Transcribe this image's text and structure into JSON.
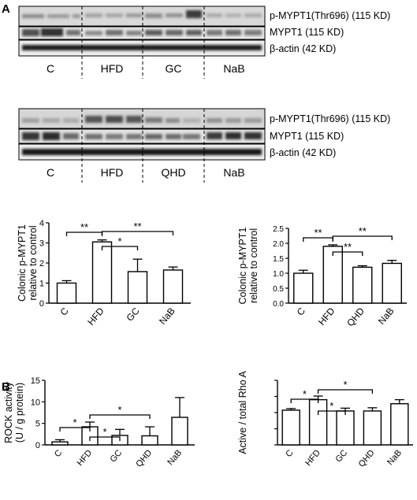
{
  "panel_labels": {
    "a": "A",
    "b": "B"
  },
  "blot1": {
    "bands": [
      "p-MYPT1(Thr696) (115 KD)",
      "MYPT1 (115 KD)",
      "β-actin (42 KD)"
    ],
    "groups": [
      "C",
      "HFD",
      "GC",
      "NaB"
    ]
  },
  "blot2": {
    "bands": [
      "p-MYPT1(Thr696) (115 KD)",
      "MYPT1 (115 KD)",
      "β-actin (42 KD)"
    ],
    "groups": [
      "C",
      "HFD",
      "QHD",
      "NaB"
    ]
  },
  "chart_data": [
    {
      "type": "bar",
      "categories": [
        "C",
        "HFD",
        "GC",
        "NaB"
      ],
      "values": [
        1.0,
        3.05,
        1.57,
        1.65
      ],
      "errors": [
        0.12,
        0.1,
        0.62,
        0.15
      ],
      "ylabel": "Colonic p-MYPT1 relative to control",
      "ylabel_lines": [
        "Colonic p-MYPT1",
        "relative to control"
      ],
      "ylim": [
        0,
        4
      ],
      "yticks": [
        0,
        1,
        2,
        3,
        4
      ],
      "ytick_labels": [
        "0",
        "1",
        "2",
        "3",
        "4"
      ],
      "significance": [
        {
          "from": 0,
          "to": 1,
          "label": "**"
        },
        {
          "from": 1,
          "to": 2,
          "label": "*"
        },
        {
          "from": 1,
          "to": 3,
          "label": "**"
        }
      ]
    },
    {
      "type": "bar",
      "categories": [
        "C",
        "HFD",
        "QHD",
        "NaB"
      ],
      "values": [
        1.0,
        1.9,
        1.2,
        1.33
      ],
      "errors": [
        0.1,
        0.05,
        0.05,
        0.1
      ],
      "ylabel": "Colonic p-MYPT1 relative to control",
      "ylabel_lines": [
        "Colonic p-MYPT1",
        "relative to control"
      ],
      "ylim": [
        0,
        2.5
      ],
      "yticks": [
        0,
        0.5,
        1,
        1.5,
        2,
        2.5
      ],
      "ytick_labels": [
        "0.0",
        "0.5",
        "1.0",
        "1.5",
        "2.0",
        "2.5"
      ],
      "significance": [
        {
          "from": 0,
          "to": 1,
          "label": "**"
        },
        {
          "from": 1,
          "to": 2,
          "label": "**"
        },
        {
          "from": 1,
          "to": 3,
          "label": "**"
        }
      ]
    },
    {
      "type": "bar",
      "categories": [
        "C",
        "HFD",
        "GC",
        "QHD",
        "NaB"
      ],
      "values": [
        0.7,
        4.2,
        2.2,
        2.1,
        6.4
      ],
      "errors": [
        0.5,
        1.1,
        1.4,
        2.1,
        4.6
      ],
      "ylabel": "ROCK activity (U / g protein)",
      "ylabel_lines": [
        "ROCK activity",
        "(U / g protein)"
      ],
      "ylim": [
        0,
        15
      ],
      "yticks": [
        0,
        5,
        10,
        15
      ],
      "ytick_labels": [
        "0",
        "5",
        "10",
        "15"
      ],
      "significance": [
        {
          "from": 0,
          "to": 1,
          "label": "*"
        },
        {
          "from": 1,
          "to": 2,
          "label": "*"
        },
        {
          "from": 1,
          "to": 3,
          "label": "*"
        }
      ]
    },
    {
      "type": "bar",
      "categories": [
        "C",
        "HFD",
        "GC",
        "QHD",
        "NaB"
      ],
      "values": [
        0.43,
        0.56,
        0.42,
        0.42,
        0.51
      ],
      "errors": [
        0.02,
        0.045,
        0.035,
        0.04,
        0.05
      ],
      "ylabel": "Active / total Rho A",
      "ylabel_lines": [
        "Active / total Rho A"
      ],
      "ylim": [
        0,
        0.8
      ],
      "yticks": [
        0,
        0.2,
        0.4,
        0.6,
        0.8
      ],
      "ytick_labels": [
        "",
        "",
        "",
        "",
        ""
      ],
      "significance": [
        {
          "from": 0,
          "to": 1,
          "label": "*"
        },
        {
          "from": 1,
          "to": 2,
          "label": "*"
        },
        {
          "from": 1,
          "to": 3,
          "label": "*"
        }
      ]
    }
  ]
}
